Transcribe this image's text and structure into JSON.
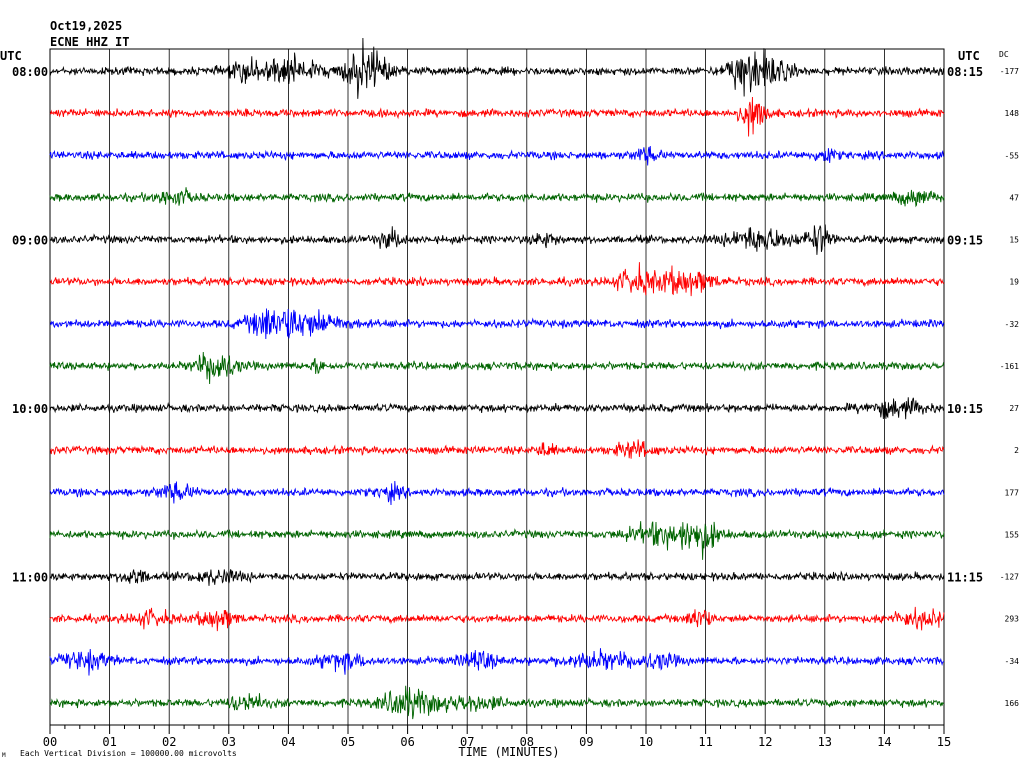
{
  "header": {
    "date": "Oct19,2025",
    "station": "ECNE HHZ IT"
  },
  "left_label": "UTC",
  "right_label": "UTC",
  "dc_label": "DC",
  "footer_note": "Each Vertical Division = 100000.00 microvolts",
  "footer_mark": "M",
  "chart_data": {
    "type": "line",
    "subtype": "helicorder",
    "xlabel": "TIME (MINUTES)",
    "x_ticks": [
      "00",
      "01",
      "02",
      "03",
      "04",
      "05",
      "06",
      "07",
      "08",
      "09",
      "10",
      "11",
      "12",
      "13",
      "14",
      "15"
    ],
    "xlim": [
      0,
      15
    ],
    "grid": true,
    "trace_colors": [
      "#000000",
      "#ff0000",
      "#0000ff",
      "#006400"
    ],
    "rows": [
      {
        "left": "08:00",
        "right": "08:15",
        "dc": "-177",
        "events": [
          [
            4.0,
            3.0,
            0.5
          ],
          [
            5.3,
            6.0,
            0.35
          ],
          [
            11.6,
            4.0,
            0.25
          ],
          [
            12.0,
            3.5,
            0.4
          ],
          [
            3.3,
            2.0,
            0.3
          ]
        ]
      },
      {
        "left": "",
        "right": "",
        "dc": "148",
        "events": [
          [
            11.8,
            5.0,
            0.2
          ]
        ]
      },
      {
        "left": "",
        "right": "",
        "dc": "-55",
        "events": [
          [
            10.0,
            1.6,
            0.2
          ],
          [
            13.0,
            2.0,
            0.15
          ]
        ]
      },
      {
        "left": "",
        "right": "",
        "dc": "47",
        "events": [
          [
            2.1,
            1.8,
            0.3
          ],
          [
            14.5,
            1.8,
            0.3
          ]
        ]
      },
      {
        "left": "09:00",
        "right": "09:15",
        "dc": "15",
        "events": [
          [
            5.7,
            2.0,
            0.2
          ],
          [
            8.3,
            1.5,
            0.2
          ],
          [
            11.9,
            2.8,
            0.5
          ],
          [
            12.9,
            3.5,
            0.2
          ]
        ]
      },
      {
        "left": "",
        "right": "",
        "dc": "19",
        "events": [
          [
            9.8,
            2.8,
            0.3
          ],
          [
            10.6,
            3.0,
            0.5
          ]
        ]
      },
      {
        "left": "",
        "right": "",
        "dc": "-32",
        "events": [
          [
            3.7,
            3.0,
            0.4
          ],
          [
            4.3,
            2.8,
            0.6
          ]
        ]
      },
      {
        "left": "",
        "right": "",
        "dc": "-161",
        "events": [
          [
            2.8,
            4.0,
            0.3
          ],
          [
            4.5,
            1.5,
            0.1
          ]
        ]
      },
      {
        "left": "10:00",
        "right": "10:15",
        "dc": "27",
        "events": [
          [
            14.2,
            2.0,
            0.5
          ]
        ]
      },
      {
        "left": "",
        "right": "",
        "dc": "2",
        "events": [
          [
            8.3,
            1.5,
            0.15
          ],
          [
            9.8,
            1.8,
            0.3
          ]
        ]
      },
      {
        "left": "",
        "right": "",
        "dc": "177",
        "events": [
          [
            2.1,
            1.8,
            0.3
          ],
          [
            5.7,
            1.6,
            0.2
          ]
        ]
      },
      {
        "left": "",
        "right": "",
        "dc": "155",
        "events": [
          [
            10.3,
            2.5,
            0.6
          ],
          [
            10.9,
            3.5,
            0.3
          ]
        ]
      },
      {
        "left": "11:00",
        "right": "11:15",
        "dc": "-127",
        "events": [
          [
            1.4,
            2.0,
            0.2
          ],
          [
            2.8,
            1.5,
            0.4
          ]
        ]
      },
      {
        "left": "",
        "right": "",
        "dc": "293",
        "events": [
          [
            1.7,
            1.8,
            0.3
          ],
          [
            2.8,
            2.2,
            0.3
          ],
          [
            10.9,
            3.5,
            0.15
          ],
          [
            14.6,
            1.8,
            0.5
          ]
        ]
      },
      {
        "left": "",
        "right": "",
        "dc": "-34",
        "events": [
          [
            0.6,
            2.0,
            0.4
          ],
          [
            4.9,
            1.8,
            0.4
          ],
          [
            7.2,
            2.0,
            0.3
          ],
          [
            9.2,
            1.8,
            0.6
          ],
          [
            10.2,
            1.6,
            0.3
          ]
        ]
      },
      {
        "left": "",
        "right": "",
        "dc": "166",
        "events": [
          [
            3.3,
            2.0,
            0.3
          ],
          [
            6.0,
            3.5,
            0.4
          ],
          [
            7.0,
            1.6,
            0.6
          ]
        ]
      }
    ]
  }
}
